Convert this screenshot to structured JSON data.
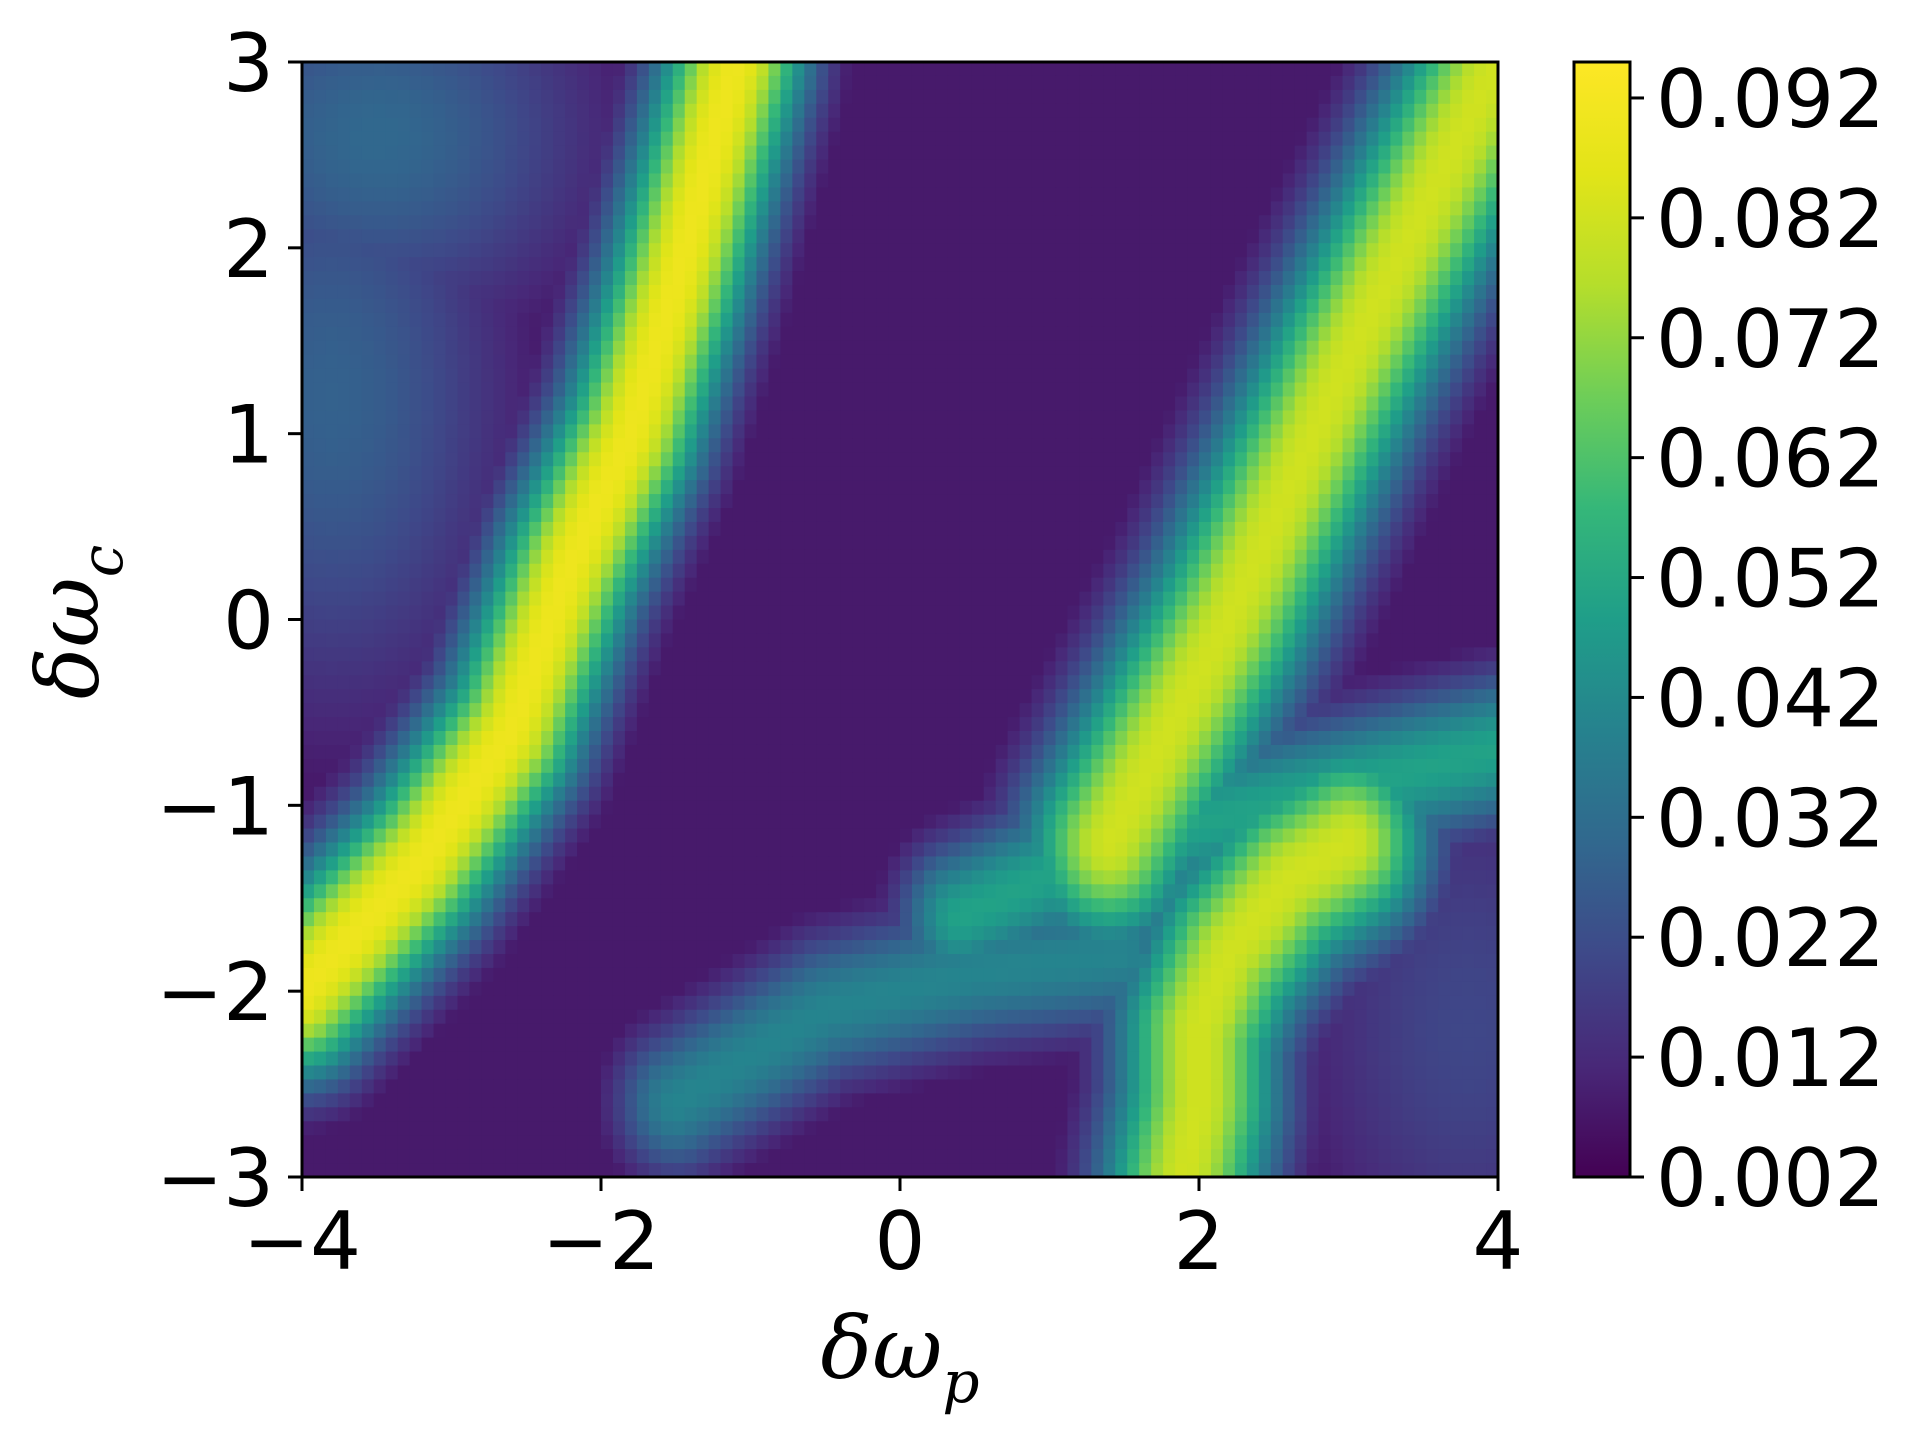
{
  "chart_data": {
    "type": "heatmap",
    "colormap": "viridis",
    "xlabel": "δω",
    "xlabel_sub": "p",
    "ylabel": "δω",
    "ylabel_sub": "c",
    "xlim": [
      -4,
      4
    ],
    "ylim": [
      -3,
      3
    ],
    "x_ticks": [
      -4,
      -2,
      0,
      2,
      4
    ],
    "x_tick_labels": [
      "−4",
      "−2",
      "0",
      "2",
      "4"
    ],
    "y_ticks": [
      -3,
      -2,
      -1,
      0,
      1,
      2,
      3
    ],
    "y_tick_labels": [
      "−3",
      "−2",
      "−1",
      "0",
      "1",
      "2",
      "3"
    ],
    "colorbar": {
      "min": 0.002,
      "max": 0.095,
      "ticks": [
        0.002,
        0.012,
        0.022,
        0.032,
        0.042,
        0.052,
        0.062,
        0.072,
        0.082,
        0.092
      ],
      "tick_labels": [
        "0.002",
        "0.012",
        "0.022",
        "0.032",
        "0.042",
        "0.052",
        "0.062",
        "0.072",
        "0.082",
        "0.092"
      ]
    },
    "features": [
      {
        "kind": "ridge",
        "peak": 0.09,
        "width": 0.35,
        "points": [
          [
            -4.0,
            -2.0
          ],
          [
            -3.2,
            -1.3
          ],
          [
            -2.6,
            -0.6
          ],
          [
            -2.2,
            0.3
          ],
          [
            -1.8,
            1.0
          ],
          [
            -1.5,
            1.8
          ],
          [
            -1.3,
            2.4
          ],
          [
            -1.1,
            3.0
          ]
        ]
      },
      {
        "kind": "ridge",
        "peak": 0.082,
        "width": 0.42,
        "points": [
          [
            1.4,
            -1.2
          ],
          [
            1.8,
            -0.6
          ],
          [
            2.2,
            0.0
          ],
          [
            2.6,
            0.7
          ],
          [
            3.0,
            1.4
          ],
          [
            3.5,
            2.2
          ],
          [
            4.0,
            3.0
          ]
        ]
      },
      {
        "kind": "ridge",
        "peak": 0.082,
        "width": 0.4,
        "points": [
          [
            1.9,
            -3.0
          ],
          [
            2.0,
            -2.6
          ],
          [
            2.0,
            -2.2
          ],
          [
            2.2,
            -1.8
          ],
          [
            2.6,
            -1.4
          ],
          [
            3.0,
            -1.2
          ]
        ]
      },
      {
        "kind": "ridge",
        "peak": 0.05,
        "width": 0.3,
        "points": [
          [
            0.4,
            -1.6
          ],
          [
            1.2,
            -1.3
          ],
          [
            2.0,
            -1.1
          ],
          [
            3.0,
            -0.9
          ],
          [
            4.0,
            -0.7
          ]
        ]
      },
      {
        "kind": "ridge",
        "peak": 0.04,
        "width": 0.3,
        "points": [
          [
            -1.5,
            -2.6
          ],
          [
            -0.5,
            -2.1
          ],
          [
            0.5,
            -1.9
          ],
          [
            1.5,
            -1.8
          ]
        ]
      },
      {
        "kind": "blob",
        "peak": 0.028,
        "center": [
          -3.8,
          1.2
        ],
        "radius": [
          0.9,
          1.3
        ]
      },
      {
        "kind": "blob",
        "peak": 0.03,
        "center": [
          -3.5,
          2.6
        ],
        "radius": [
          1.1,
          0.8
        ]
      },
      {
        "kind": "blob",
        "peak": 0.02,
        "center": [
          3.8,
          -2.2
        ],
        "radius": [
          0.9,
          1.2
        ]
      }
    ],
    "baseline": 0.008
  }
}
